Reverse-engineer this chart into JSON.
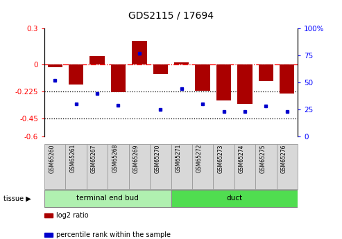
{
  "title": "GDS2115 / 17694",
  "samples": [
    "GSM65260",
    "GSM65261",
    "GSM65267",
    "GSM65268",
    "GSM65269",
    "GSM65270",
    "GSM65271",
    "GSM65272",
    "GSM65273",
    "GSM65274",
    "GSM65275",
    "GSM65276"
  ],
  "log2_ratio": [
    -0.02,
    -0.17,
    0.07,
    -0.23,
    0.2,
    -0.08,
    0.02,
    -0.22,
    -0.3,
    -0.33,
    -0.14,
    -0.24
  ],
  "pct_rank": [
    52,
    30,
    40,
    29,
    77,
    25,
    44,
    30,
    23,
    23,
    28,
    23
  ],
  "tissue_groups": [
    {
      "label": "terminal end bud",
      "start": 0,
      "end": 6,
      "color": "#b0f0b0"
    },
    {
      "label": "duct",
      "start": 6,
      "end": 12,
      "color": "#50dd50"
    }
  ],
  "bar_color": "#AA0000",
  "dot_color": "#0000CC",
  "ylim_left": [
    -0.6,
    0.3
  ],
  "ylim_right": [
    0,
    100
  ],
  "dotted_lines": [
    -0.225,
    -0.45
  ],
  "right_ticks": [
    0,
    25,
    50,
    75,
    100
  ],
  "left_ticks": [
    -0.6,
    -0.45,
    -0.225,
    0,
    0.3
  ],
  "tissue_label": "tissue",
  "legend_log2": "log2 ratio",
  "legend_pct": "percentile rank within the sample"
}
